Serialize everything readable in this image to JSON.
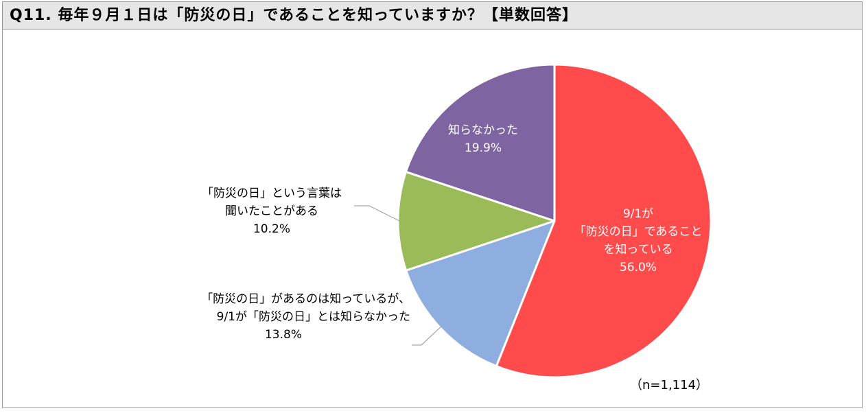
{
  "title": "Q11. 毎年９月１日は「防災の日」であることを知っていますか？【単数回答】",
  "sample_note": "（n=1,114）",
  "colors": {
    "slice_known": "#ff4b4b",
    "slice_aware_not_date": "#8faee0",
    "slice_heard_word": "#9bbb59",
    "slice_not_known": "#7e64a1",
    "leader": "#a6a6a6"
  },
  "chart_data": {
    "type": "pie",
    "title": "Q11. 毎年９月１日は「防災の日」であることを知っていますか？【単数回答】",
    "slices": [
      {
        "lines": [
          "9/1が",
          "「防災の日」であること",
          "を知っている"
        ],
        "percent_label": "56.0%",
        "value": 56.0
      },
      {
        "lines": [
          "「防災の日」があるのは知っているが、",
          "9/1が「防災の日」とは知らなかった"
        ],
        "percent_label": "13.8%",
        "value": 13.8
      },
      {
        "lines": [
          "「防災の日」という言葉は",
          "聞いたことがある"
        ],
        "percent_label": "10.2%",
        "value": 10.2
      },
      {
        "lines": [
          "知らなかった"
        ],
        "percent_label": "19.9%",
        "value": 19.9
      }
    ],
    "start_angle": "12 o'clock",
    "direction": "clockwise",
    "n": 1114
  }
}
